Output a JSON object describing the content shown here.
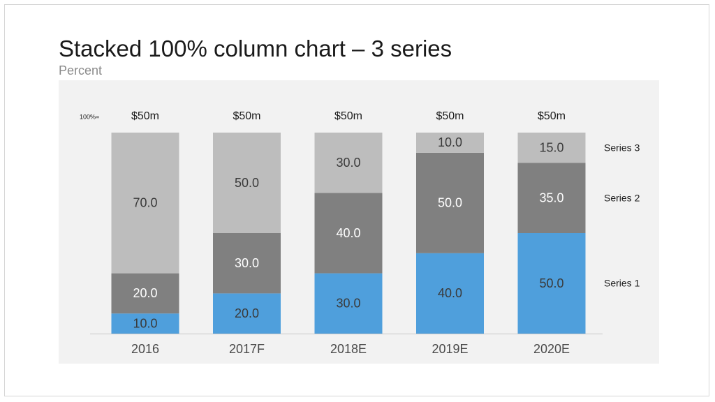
{
  "slide": {
    "title": "Stacked 100% column chart – 3 series",
    "subtitle": "Percent"
  },
  "chart_data": {
    "type": "bar",
    "stacked": true,
    "normalized": "100%",
    "categories": [
      "2016",
      "2017F",
      "2018E",
      "2019E",
      "2020E"
    ],
    "totals_prefix": "100%=",
    "totals": [
      "$50m",
      "$50m",
      "$50m",
      "$50m",
      "$50m"
    ],
    "series": [
      {
        "name": "Series 1",
        "color": "#4f9fdc",
        "label_color": "#3a3a3a",
        "values": [
          10.0,
          20.0,
          30.0,
          40.0,
          50.0
        ]
      },
      {
        "name": "Series 2",
        "color": "#808080",
        "label_color": "#ffffff",
        "values": [
          20.0,
          30.0,
          40.0,
          50.0,
          35.0
        ]
      },
      {
        "name": "Series 3",
        "color": "#bdbdbd",
        "label_color": "#3a3a3a",
        "values": [
          70.0,
          50.0,
          30.0,
          10.0,
          15.0
        ]
      }
    ],
    "ylim": [
      0,
      100
    ],
    "grid": false,
    "legend_position": "right, aligned with segments",
    "xlabel": "",
    "ylabel": ""
  }
}
